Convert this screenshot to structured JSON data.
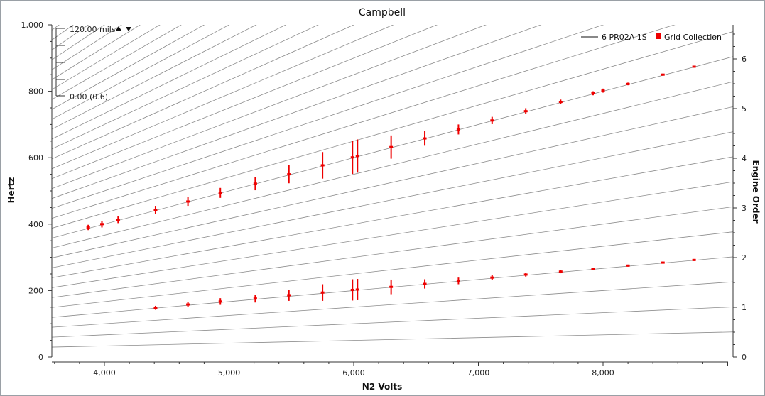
{
  "chart_data": {
    "type": "scatter",
    "title": "Campbell",
    "xlabel": "N2 Volts",
    "ylabel": "Hertz",
    "y2label": "Engine Order",
    "xlim": [
      3600,
      9000
    ],
    "ylim": [
      0,
      1000
    ],
    "y2lim": [
      0,
      6.67
    ],
    "grid": false,
    "x_ticks": [
      4000,
      5000,
      6000,
      7000,
      8000
    ],
    "x_tick_labels": [
      "4,000",
      "5,000",
      "6,000",
      "7,000",
      "8,000"
    ],
    "y_ticks": [
      0,
      200,
      400,
      600,
      800,
      1000
    ],
    "y_tick_labels": [
      "0",
      "200",
      "400",
      "600",
      "800",
      "1,000"
    ],
    "y2_ticks": [
      0,
      1,
      2,
      3,
      4,
      5,
      6
    ],
    "y2_tick_labels": [
      "0",
      "1",
      "2",
      "3",
      "4",
      "5",
      "6"
    ],
    "order_lines": {
      "name": "6 PR02A 1S",
      "color": "#8c8c8c",
      "orders": [
        0.5,
        1,
        1.5,
        2,
        2.5,
        3,
        3.5,
        4,
        4.5,
        5,
        5.5,
        6,
        6.5,
        7,
        7.5,
        8,
        8.5,
        9,
        9.5,
        10,
        10.5,
        11,
        11.5,
        12,
        12.5,
        13,
        13.5,
        14,
        14.5,
        15,
        15.5,
        16,
        16.5,
        17,
        17.5,
        18,
        18.5,
        19,
        19.5,
        20
      ]
    },
    "series": [
      {
        "name": "Grid Collection",
        "color": "#ee0000",
        "points": [
          {
            "x": 3870,
            "y": 390,
            "err": 8
          },
          {
            "x": 3980,
            "y": 400,
            "err": 10
          },
          {
            "x": 4110,
            "y": 413,
            "err": 10
          },
          {
            "x": 4410,
            "y": 443,
            "err": 12
          },
          {
            "x": 4670,
            "y": 468,
            "err": 13
          },
          {
            "x": 4930,
            "y": 494,
            "err": 15
          },
          {
            "x": 5210,
            "y": 522,
            "err": 20
          },
          {
            "x": 5480,
            "y": 550,
            "err": 27
          },
          {
            "x": 5750,
            "y": 577,
            "err": 40
          },
          {
            "x": 5990,
            "y": 601,
            "err": 50
          },
          {
            "x": 6030,
            "y": 605,
            "err": 50
          },
          {
            "x": 6300,
            "y": 632,
            "err": 35
          },
          {
            "x": 6570,
            "y": 658,
            "err": 22
          },
          {
            "x": 6840,
            "y": 685,
            "err": 15
          },
          {
            "x": 7110,
            "y": 712,
            "err": 11
          },
          {
            "x": 7380,
            "y": 740,
            "err": 9
          },
          {
            "x": 7660,
            "y": 768,
            "err": 7
          },
          {
            "x": 7920,
            "y": 794,
            "err": 6
          },
          {
            "x": 8000,
            "y": 802,
            "err": 6
          },
          {
            "x": 8200,
            "y": 822,
            "err": 4
          },
          {
            "x": 8480,
            "y": 850,
            "err": 3
          },
          {
            "x": 8730,
            "y": 874,
            "err": 3
          },
          {
            "x": 4410,
            "y": 148,
            "err": 6
          },
          {
            "x": 4670,
            "y": 158,
            "err": 8
          },
          {
            "x": 4930,
            "y": 167,
            "err": 10
          },
          {
            "x": 5210,
            "y": 176,
            "err": 12
          },
          {
            "x": 5480,
            "y": 186,
            "err": 17
          },
          {
            "x": 5750,
            "y": 194,
            "err": 25
          },
          {
            "x": 5990,
            "y": 202,
            "err": 32
          },
          {
            "x": 6030,
            "y": 203,
            "err": 32
          },
          {
            "x": 6300,
            "y": 211,
            "err": 22
          },
          {
            "x": 6570,
            "y": 220,
            "err": 14
          },
          {
            "x": 6840,
            "y": 229,
            "err": 10
          },
          {
            "x": 7110,
            "y": 239,
            "err": 8
          },
          {
            "x": 7380,
            "y": 248,
            "err": 6
          },
          {
            "x": 7660,
            "y": 257,
            "err": 5
          },
          {
            "x": 7920,
            "y": 265,
            "err": 4
          },
          {
            "x": 8200,
            "y": 275,
            "err": 3
          },
          {
            "x": 8480,
            "y": 284,
            "err": 3
          },
          {
            "x": 8730,
            "y": 292,
            "err": 3
          }
        ]
      }
    ],
    "legend": {
      "placement": "top-right",
      "items": [
        {
          "label": "6 PR02A 1S",
          "symbol": "line",
          "color": "#111111"
        },
        {
          "label": "Grid Collection",
          "symbol": "square",
          "color": "#ee0000"
        }
      ]
    },
    "scale_indicator": {
      "top_label": "120.00 mils",
      "bottom_label": "0.00 (0.6)",
      "up_icon": "triangle-up-icon",
      "down_icon": "triangle-down-icon"
    }
  }
}
